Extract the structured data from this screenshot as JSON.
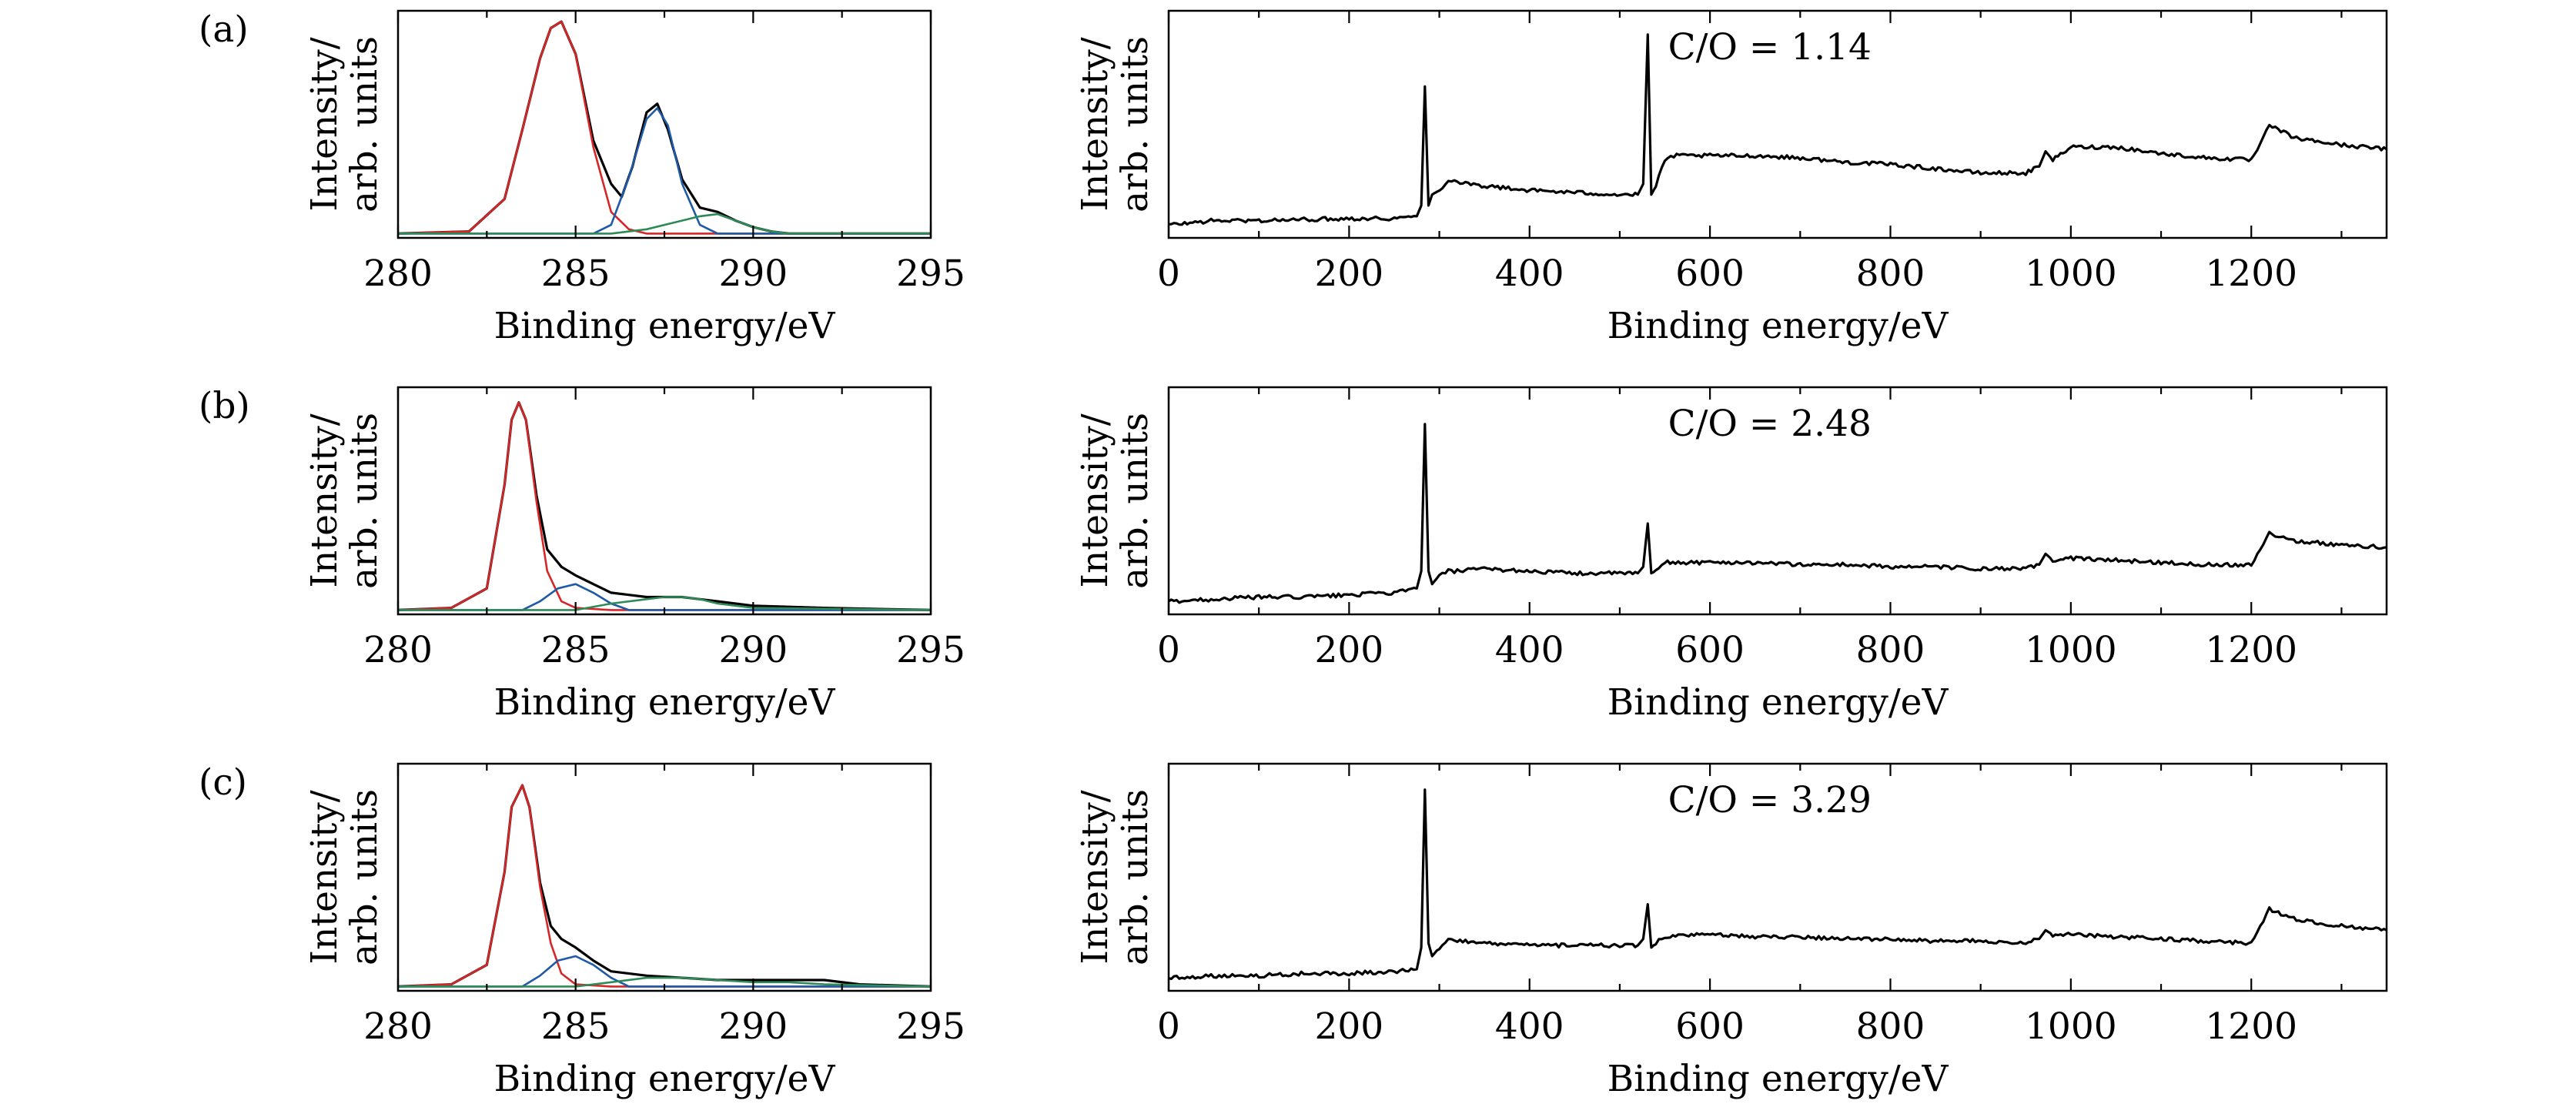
{
  "chart_data": [
    {
      "id": "a-c1s",
      "type": "line",
      "panel_label": "(a)",
      "xlabel": "Binding energy/eV",
      "ylabel": [
        "Intensity/",
        "arb. units"
      ],
      "xlim": [
        280,
        295
      ],
      "ylim": [
        0,
        1.05
      ],
      "xticks": [
        280,
        285,
        290,
        295
      ],
      "series": [
        {
          "name": "",
          "color": "#000000",
          "x": [
            280,
            282,
            283,
            283.5,
            284,
            284.3,
            284.6,
            285,
            285.5,
            286,
            286.3,
            286.6,
            287,
            287.3,
            287.6,
            288,
            288.5,
            289,
            289.5,
            290,
            290.5,
            291,
            292,
            293,
            295
          ],
          "y": [
            0.02,
            0.03,
            0.18,
            0.5,
            0.83,
            0.97,
            1.0,
            0.85,
            0.45,
            0.25,
            0.19,
            0.33,
            0.58,
            0.62,
            0.5,
            0.27,
            0.14,
            0.12,
            0.08,
            0.05,
            0.03,
            0.02,
            0.02,
            0.02,
            0.02
          ]
        },
        {
          "name": "",
          "color": "#d62728",
          "x": [
            280,
            282,
            283,
            283.5,
            284,
            284.3,
            284.6,
            285,
            285.5,
            286,
            286.5,
            287,
            288,
            290,
            295
          ],
          "y": [
            0.02,
            0.03,
            0.18,
            0.5,
            0.83,
            0.97,
            1.0,
            0.85,
            0.42,
            0.12,
            0.04,
            0.02,
            0.02,
            0.02,
            0.02
          ]
        },
        {
          "name": "",
          "color": "#1f5aa6",
          "x": [
            280,
            285.5,
            286,
            286.5,
            287,
            287.3,
            287.6,
            288,
            288.5,
            289,
            290,
            295
          ],
          "y": [
            0.02,
            0.02,
            0.06,
            0.28,
            0.55,
            0.6,
            0.52,
            0.25,
            0.06,
            0.02,
            0.02,
            0.02
          ]
        },
        {
          "name": "",
          "color": "#2e8b57",
          "x": [
            280,
            286,
            287,
            288,
            288.5,
            289,
            289.5,
            290,
            290.5,
            291,
            295
          ],
          "y": [
            0.02,
            0.02,
            0.04,
            0.08,
            0.1,
            0.11,
            0.08,
            0.05,
            0.03,
            0.02,
            0.02
          ]
        }
      ]
    },
    {
      "id": "a-survey",
      "type": "line",
      "xlabel": "Binding energy/eV",
      "ylabel": [
        "Intensity/",
        "arb. units"
      ],
      "annotation": "C/O = 1.14",
      "xlim": [
        0,
        1350
      ],
      "ylim": [
        0,
        1.05
      ],
      "xticks": [
        0,
        200,
        400,
        600,
        800,
        1000,
        1200
      ],
      "series": [
        {
          "name": "",
          "color": "#000000",
          "x": [
            0,
            50,
            100,
            150,
            200,
            250,
            275,
            280,
            284,
            288,
            292,
            300,
            310,
            320,
            350,
            400,
            450,
            500,
            520,
            526,
            531,
            535,
            540,
            550,
            560,
            600,
            650,
            700,
            750,
            800,
            850,
            900,
            950,
            965,
            972,
            980,
            1000,
            1050,
            1100,
            1150,
            1200,
            1210,
            1220,
            1230,
            1250,
            1300,
            1350
          ],
          "y": [
            0.06,
            0.08,
            0.08,
            0.085,
            0.09,
            0.09,
            0.1,
            0.15,
            0.7,
            0.15,
            0.2,
            0.22,
            0.27,
            0.26,
            0.24,
            0.22,
            0.21,
            0.2,
            0.2,
            0.25,
            0.94,
            0.2,
            0.24,
            0.36,
            0.38,
            0.38,
            0.38,
            0.37,
            0.35,
            0.34,
            0.32,
            0.3,
            0.3,
            0.33,
            0.4,
            0.36,
            0.42,
            0.42,
            0.39,
            0.37,
            0.36,
            0.43,
            0.52,
            0.5,
            0.46,
            0.43,
            0.41
          ]
        }
      ]
    },
    {
      "id": "b-c1s",
      "type": "line",
      "panel_label": "(b)",
      "xlabel": "Binding energy/eV",
      "ylabel": [
        "Intensity/",
        "arb. units"
      ],
      "xlim": [
        280,
        295
      ],
      "ylim": [
        0,
        1.05
      ],
      "xticks": [
        280,
        285,
        290,
        295
      ],
      "series": [
        {
          "name": "",
          "color": "#000000",
          "x": [
            280,
            281.5,
            282.5,
            283,
            283.2,
            283.4,
            283.6,
            283.9,
            284.2,
            284.6,
            285,
            285.5,
            286,
            286.5,
            287,
            287.5,
            288,
            288.5,
            289,
            290,
            292,
            295
          ],
          "y": [
            0.02,
            0.03,
            0.12,
            0.6,
            0.9,
            0.98,
            0.9,
            0.55,
            0.3,
            0.22,
            0.18,
            0.14,
            0.1,
            0.09,
            0.08,
            0.08,
            0.08,
            0.07,
            0.06,
            0.04,
            0.03,
            0.02
          ]
        },
        {
          "name": "",
          "color": "#d62728",
          "x": [
            280,
            281.5,
            282.5,
            283,
            283.2,
            283.4,
            283.6,
            283.9,
            284.2,
            284.6,
            285,
            286,
            288,
            295
          ],
          "y": [
            0.02,
            0.03,
            0.12,
            0.6,
            0.9,
            0.98,
            0.9,
            0.52,
            0.2,
            0.06,
            0.03,
            0.02,
            0.02,
            0.02
          ]
        },
        {
          "name": "",
          "color": "#1f5aa6",
          "x": [
            280,
            283.5,
            284,
            284.5,
            285,
            285.5,
            286,
            286.5,
            295
          ],
          "y": [
            0.02,
            0.02,
            0.06,
            0.12,
            0.14,
            0.1,
            0.05,
            0.02,
            0.02
          ]
        },
        {
          "name": "",
          "color": "#2e8b57",
          "x": [
            280,
            285,
            286,
            287,
            287.5,
            288,
            288.5,
            289,
            290,
            295
          ],
          "y": [
            0.02,
            0.02,
            0.05,
            0.07,
            0.08,
            0.08,
            0.07,
            0.05,
            0.03,
            0.02
          ]
        }
      ]
    },
    {
      "id": "b-survey",
      "type": "line",
      "xlabel": "Binding energy/eV",
      "ylabel": [
        "Intensity/",
        "arb. units"
      ],
      "annotation": "C/O = 2.48",
      "xlim": [
        0,
        1350
      ],
      "ylim": [
        0,
        1.05
      ],
      "xticks": [
        0,
        200,
        400,
        600,
        800,
        1000,
        1200
      ],
      "series": [
        {
          "name": "",
          "color": "#000000",
          "x": [
            0,
            50,
            100,
            150,
            200,
            250,
            275,
            280,
            284,
            288,
            292,
            300,
            310,
            320,
            350,
            400,
            450,
            500,
            520,
            526,
            531,
            535,
            540,
            550,
            600,
            650,
            700,
            750,
            800,
            850,
            900,
            950,
            965,
            972,
            980,
            1000,
            1050,
            1100,
            1150,
            1200,
            1210,
            1220,
            1230,
            1250,
            1300,
            1350
          ],
          "y": [
            0.06,
            0.07,
            0.08,
            0.08,
            0.09,
            0.1,
            0.12,
            0.2,
            0.88,
            0.2,
            0.14,
            0.18,
            0.2,
            0.2,
            0.21,
            0.2,
            0.19,
            0.19,
            0.19,
            0.22,
            0.42,
            0.19,
            0.2,
            0.24,
            0.24,
            0.24,
            0.23,
            0.23,
            0.22,
            0.22,
            0.21,
            0.21,
            0.23,
            0.28,
            0.25,
            0.26,
            0.25,
            0.24,
            0.23,
            0.23,
            0.3,
            0.38,
            0.36,
            0.34,
            0.32,
            0.31
          ]
        }
      ]
    },
    {
      "id": "c-c1s",
      "type": "line",
      "panel_label": "(c)",
      "xlabel": "Binding energy/eV",
      "ylabel": [
        "Intensity/",
        "arb. units"
      ],
      "xlim": [
        280,
        295
      ],
      "ylim": [
        0,
        1.05
      ],
      "xticks": [
        280,
        285,
        290,
        295
      ],
      "series": [
        {
          "name": "",
          "color": "#000000",
          "x": [
            280,
            281.5,
            282.5,
            283,
            283.2,
            283.5,
            283.7,
            284,
            284.3,
            284.6,
            285,
            285.5,
            286,
            287,
            288,
            289,
            290,
            291,
            292,
            293,
            295
          ],
          "y": [
            0.02,
            0.03,
            0.12,
            0.55,
            0.85,
            0.95,
            0.85,
            0.5,
            0.3,
            0.24,
            0.2,
            0.14,
            0.09,
            0.07,
            0.06,
            0.05,
            0.05,
            0.05,
            0.05,
            0.03,
            0.02
          ]
        },
        {
          "name": "",
          "color": "#d62728",
          "x": [
            280,
            281.5,
            282.5,
            283,
            283.2,
            283.5,
            283.7,
            284,
            284.3,
            284.6,
            285,
            286,
            288,
            295
          ],
          "y": [
            0.02,
            0.03,
            0.12,
            0.55,
            0.85,
            0.95,
            0.85,
            0.48,
            0.22,
            0.08,
            0.03,
            0.02,
            0.02,
            0.02
          ]
        },
        {
          "name": "",
          "color": "#1f5aa6",
          "x": [
            280,
            283.5,
            284,
            284.5,
            285,
            285.5,
            286,
            286.5,
            295
          ],
          "y": [
            0.02,
            0.02,
            0.07,
            0.14,
            0.16,
            0.12,
            0.06,
            0.02,
            0.02
          ]
        },
        {
          "name": "",
          "color": "#2e8b57",
          "x": [
            280,
            285,
            286,
            287,
            288,
            289,
            290,
            291,
            292,
            295
          ],
          "y": [
            0.02,
            0.02,
            0.04,
            0.06,
            0.06,
            0.05,
            0.04,
            0.04,
            0.03,
            0.02
          ]
        }
      ]
    },
    {
      "id": "c-survey",
      "type": "line",
      "xlabel": "Binding energy/eV",
      "ylabel": [
        "Intensity/",
        "arb. units"
      ],
      "annotation": "C/O = 3.29",
      "xlim": [
        0,
        1350
      ],
      "ylim": [
        0,
        1.05
      ],
      "xticks": [
        0,
        200,
        400,
        600,
        800,
        1000,
        1200
      ],
      "series": [
        {
          "name": "",
          "color": "#000000",
          "x": [
            0,
            50,
            100,
            150,
            200,
            250,
            275,
            280,
            284,
            288,
            292,
            300,
            310,
            320,
            350,
            400,
            450,
            500,
            520,
            526,
            531,
            535,
            540,
            550,
            600,
            650,
            700,
            750,
            800,
            850,
            900,
            950,
            965,
            972,
            980,
            1000,
            1050,
            1100,
            1150,
            1200,
            1210,
            1220,
            1230,
            1250,
            1300,
            1350
          ],
          "y": [
            0.06,
            0.07,
            0.07,
            0.08,
            0.08,
            0.09,
            0.1,
            0.2,
            0.93,
            0.22,
            0.16,
            0.2,
            0.24,
            0.23,
            0.22,
            0.21,
            0.21,
            0.21,
            0.21,
            0.24,
            0.4,
            0.2,
            0.22,
            0.25,
            0.26,
            0.25,
            0.25,
            0.24,
            0.24,
            0.23,
            0.23,
            0.22,
            0.24,
            0.28,
            0.26,
            0.26,
            0.25,
            0.24,
            0.23,
            0.22,
            0.3,
            0.38,
            0.36,
            0.33,
            0.3,
            0.28
          ]
        }
      ]
    }
  ]
}
